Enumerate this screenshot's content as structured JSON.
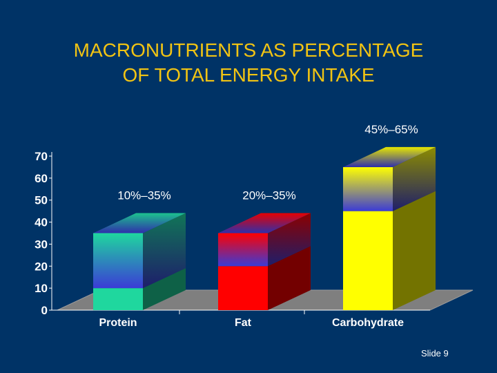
{
  "slide": {
    "title_line1": "MACRONUTRIENTS AS PERCENTAGE",
    "title_line2": "OF TOTAL ENERGY INTAKE",
    "slide_number": "Slide 9"
  },
  "chart_data": {
    "type": "bar",
    "title": "",
    "xlabel": "",
    "ylabel": "",
    "ylim": [
      0,
      70
    ],
    "yticks": [
      "0",
      "10",
      "20",
      "30",
      "40",
      "50",
      "60",
      "70"
    ],
    "categories": [
      "Protein",
      "Fat",
      "Carbohydrate"
    ],
    "series": [
      {
        "values": [
          10,
          20,
          45
        ]
      },
      {
        "values": [
          35,
          35,
          65
        ]
      }
    ],
    "range_labels": [
      "10%–35%",
      "20%–35%",
      "45%–65%"
    ],
    "colors": {
      "protein_base": "#1fd79e",
      "fat_base": "#ff0000",
      "carb_base": "#ffff00",
      "range_bottom": "#3b3bd6",
      "floor": "#7f7f7f",
      "label_text": "#ffffff"
    },
    "grid": false,
    "legend": "none"
  }
}
